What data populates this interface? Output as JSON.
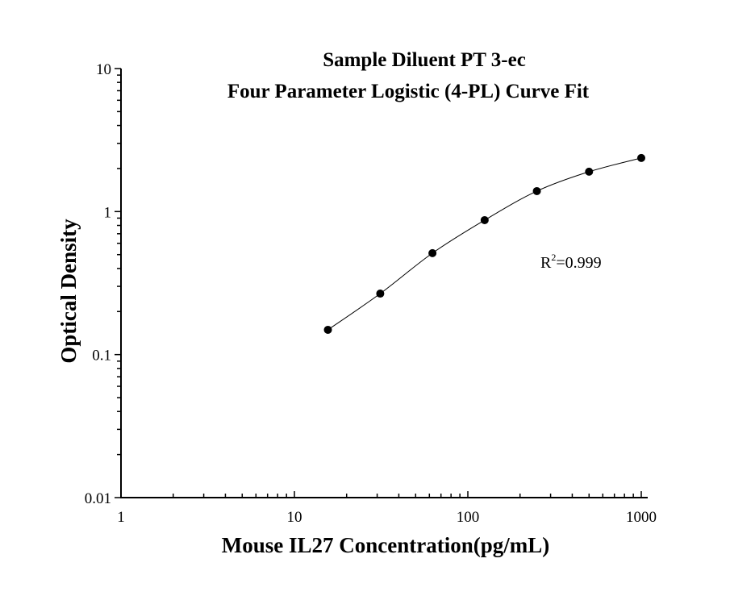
{
  "chart_data": {
    "type": "scatter",
    "title": [
      "Sample Diluent PT 3-ec",
      "Four Parameter Logistic (4-PL) Curve Fit"
    ],
    "xlabel": "Mouse IL27 Concentration(pg/mL)",
    "ylabel": "Optical Density",
    "xscale": "log",
    "yscale": "log",
    "xlim": [
      1,
      1000
    ],
    "ylim": [
      0.01,
      10
    ],
    "xticks": [
      "1",
      "10",
      "100",
      "1000"
    ],
    "yticks": [
      "0.01",
      "0.1",
      "1",
      "10"
    ],
    "grid": false,
    "fit": "4-PL curve",
    "annotation": {
      "base": "R",
      "sup": "2",
      "rest": "=0.999"
    },
    "series": [
      {
        "x": [
          15.6,
          31.25,
          62.5,
          125,
          250,
          500,
          1000
        ],
        "y": [
          0.149,
          0.267,
          0.512,
          0.871,
          1.39,
          1.9,
          2.37
        ],
        "color": "#000000"
      }
    ]
  }
}
